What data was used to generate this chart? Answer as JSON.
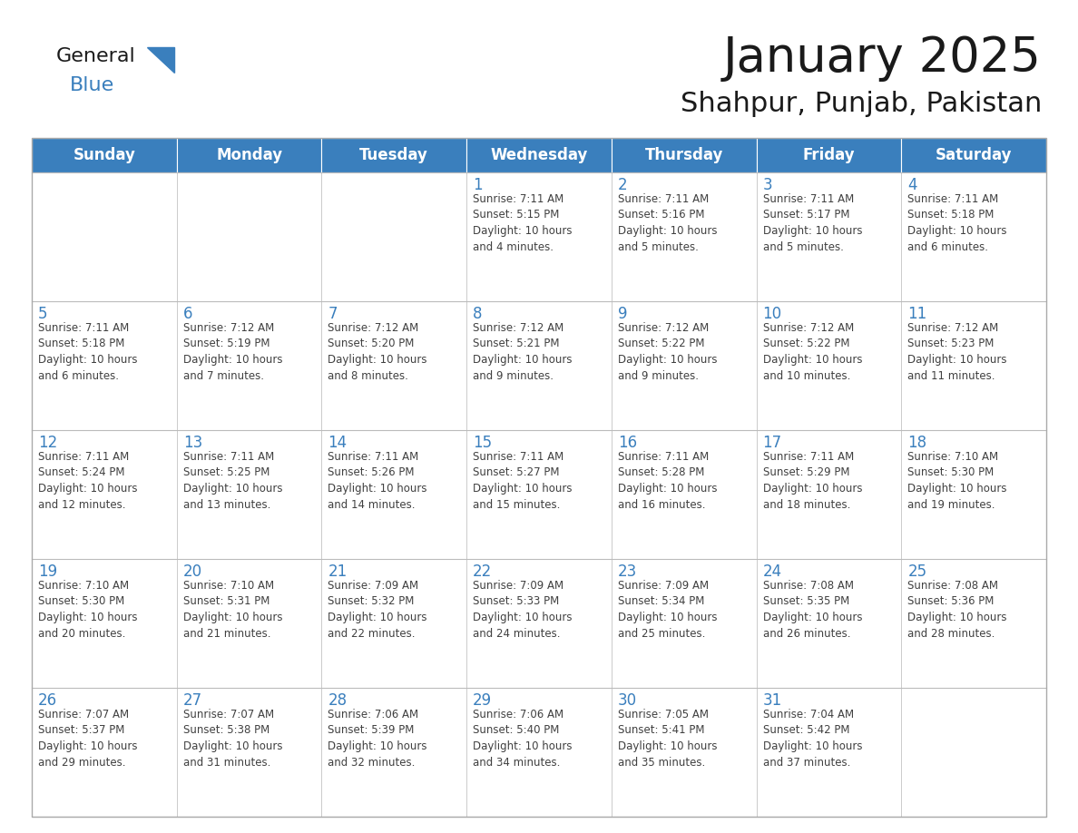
{
  "title": "January 2025",
  "subtitle": "Shahpur, Punjab, Pakistan",
  "header_bg": "#3A7FBD",
  "header_text": "#FFFFFF",
  "day_number_color": "#3A7FBD",
  "text_color": "#404040",
  "days_of_week": [
    "Sunday",
    "Monday",
    "Tuesday",
    "Wednesday",
    "Thursday",
    "Friday",
    "Saturday"
  ],
  "calendar_data": [
    [
      {
        "day": 0,
        "info": ""
      },
      {
        "day": 0,
        "info": ""
      },
      {
        "day": 0,
        "info": ""
      },
      {
        "day": 1,
        "info": "Sunrise: 7:11 AM\nSunset: 5:15 PM\nDaylight: 10 hours\nand 4 minutes."
      },
      {
        "day": 2,
        "info": "Sunrise: 7:11 AM\nSunset: 5:16 PM\nDaylight: 10 hours\nand 5 minutes."
      },
      {
        "day": 3,
        "info": "Sunrise: 7:11 AM\nSunset: 5:17 PM\nDaylight: 10 hours\nand 5 minutes."
      },
      {
        "day": 4,
        "info": "Sunrise: 7:11 AM\nSunset: 5:18 PM\nDaylight: 10 hours\nand 6 minutes."
      }
    ],
    [
      {
        "day": 5,
        "info": "Sunrise: 7:11 AM\nSunset: 5:18 PM\nDaylight: 10 hours\nand 6 minutes."
      },
      {
        "day": 6,
        "info": "Sunrise: 7:12 AM\nSunset: 5:19 PM\nDaylight: 10 hours\nand 7 minutes."
      },
      {
        "day": 7,
        "info": "Sunrise: 7:12 AM\nSunset: 5:20 PM\nDaylight: 10 hours\nand 8 minutes."
      },
      {
        "day": 8,
        "info": "Sunrise: 7:12 AM\nSunset: 5:21 PM\nDaylight: 10 hours\nand 9 minutes."
      },
      {
        "day": 9,
        "info": "Sunrise: 7:12 AM\nSunset: 5:22 PM\nDaylight: 10 hours\nand 9 minutes."
      },
      {
        "day": 10,
        "info": "Sunrise: 7:12 AM\nSunset: 5:22 PM\nDaylight: 10 hours\nand 10 minutes."
      },
      {
        "day": 11,
        "info": "Sunrise: 7:12 AM\nSunset: 5:23 PM\nDaylight: 10 hours\nand 11 minutes."
      }
    ],
    [
      {
        "day": 12,
        "info": "Sunrise: 7:11 AM\nSunset: 5:24 PM\nDaylight: 10 hours\nand 12 minutes."
      },
      {
        "day": 13,
        "info": "Sunrise: 7:11 AM\nSunset: 5:25 PM\nDaylight: 10 hours\nand 13 minutes."
      },
      {
        "day": 14,
        "info": "Sunrise: 7:11 AM\nSunset: 5:26 PM\nDaylight: 10 hours\nand 14 minutes."
      },
      {
        "day": 15,
        "info": "Sunrise: 7:11 AM\nSunset: 5:27 PM\nDaylight: 10 hours\nand 15 minutes."
      },
      {
        "day": 16,
        "info": "Sunrise: 7:11 AM\nSunset: 5:28 PM\nDaylight: 10 hours\nand 16 minutes."
      },
      {
        "day": 17,
        "info": "Sunrise: 7:11 AM\nSunset: 5:29 PM\nDaylight: 10 hours\nand 18 minutes."
      },
      {
        "day": 18,
        "info": "Sunrise: 7:10 AM\nSunset: 5:30 PM\nDaylight: 10 hours\nand 19 minutes."
      }
    ],
    [
      {
        "day": 19,
        "info": "Sunrise: 7:10 AM\nSunset: 5:30 PM\nDaylight: 10 hours\nand 20 minutes."
      },
      {
        "day": 20,
        "info": "Sunrise: 7:10 AM\nSunset: 5:31 PM\nDaylight: 10 hours\nand 21 minutes."
      },
      {
        "day": 21,
        "info": "Sunrise: 7:09 AM\nSunset: 5:32 PM\nDaylight: 10 hours\nand 22 minutes."
      },
      {
        "day": 22,
        "info": "Sunrise: 7:09 AM\nSunset: 5:33 PM\nDaylight: 10 hours\nand 24 minutes."
      },
      {
        "day": 23,
        "info": "Sunrise: 7:09 AM\nSunset: 5:34 PM\nDaylight: 10 hours\nand 25 minutes."
      },
      {
        "day": 24,
        "info": "Sunrise: 7:08 AM\nSunset: 5:35 PM\nDaylight: 10 hours\nand 26 minutes."
      },
      {
        "day": 25,
        "info": "Sunrise: 7:08 AM\nSunset: 5:36 PM\nDaylight: 10 hours\nand 28 minutes."
      }
    ],
    [
      {
        "day": 26,
        "info": "Sunrise: 7:07 AM\nSunset: 5:37 PM\nDaylight: 10 hours\nand 29 minutes."
      },
      {
        "day": 27,
        "info": "Sunrise: 7:07 AM\nSunset: 5:38 PM\nDaylight: 10 hours\nand 31 minutes."
      },
      {
        "day": 28,
        "info": "Sunrise: 7:06 AM\nSunset: 5:39 PM\nDaylight: 10 hours\nand 32 minutes."
      },
      {
        "day": 29,
        "info": "Sunrise: 7:06 AM\nSunset: 5:40 PM\nDaylight: 10 hours\nand 34 minutes."
      },
      {
        "day": 30,
        "info": "Sunrise: 7:05 AM\nSunset: 5:41 PM\nDaylight: 10 hours\nand 35 minutes."
      },
      {
        "day": 31,
        "info": "Sunrise: 7:04 AM\nSunset: 5:42 PM\nDaylight: 10 hours\nand 37 minutes."
      },
      {
        "day": 0,
        "info": ""
      }
    ]
  ],
  "fig_width": 11.88,
  "fig_height": 9.18,
  "dpi": 100
}
